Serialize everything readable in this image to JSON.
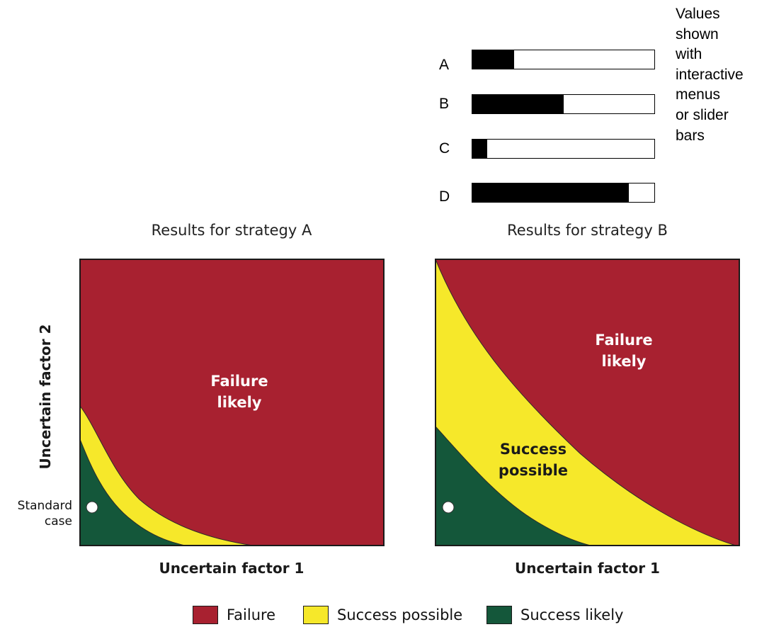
{
  "controls": {
    "note_lines": [
      "Values",
      "shown",
      "with",
      "interactive",
      "menus",
      "or slider",
      "bars"
    ],
    "sliders": [
      {
        "label": "A",
        "value": 0.23
      },
      {
        "label": "B",
        "value": 0.5
      },
      {
        "label": "C",
        "value": 0.08
      },
      {
        "label": "D",
        "value": 0.86
      }
    ]
  },
  "panels": [
    {
      "title": "Results for strategy A",
      "xlabel": "Uncertain factor 1",
      "failure_label": [
        "Failure",
        "likely"
      ],
      "success_label": []
    },
    {
      "title": "Results for strategy B",
      "xlabel": "Uncertain factor 1",
      "failure_label": [
        "Failure",
        "likely"
      ],
      "success_label": [
        "Success",
        "possible"
      ]
    }
  ],
  "ylabel": "Uncertain factor 2",
  "standard_case": [
    "Standard",
    "case"
  ],
  "legend": [
    {
      "label": "Failure",
      "color": "#a82130"
    },
    {
      "label": "Success possible",
      "color": "#f6e82a"
    },
    {
      "label": "Success likely",
      "color": "#14573a"
    }
  ],
  "colors": {
    "failure": "#a82130",
    "success_possible": "#f6e82a",
    "success_likely": "#14573a",
    "text_on_failure": "#ffffff",
    "text_on_success_possible": "#1a1a1a"
  }
}
